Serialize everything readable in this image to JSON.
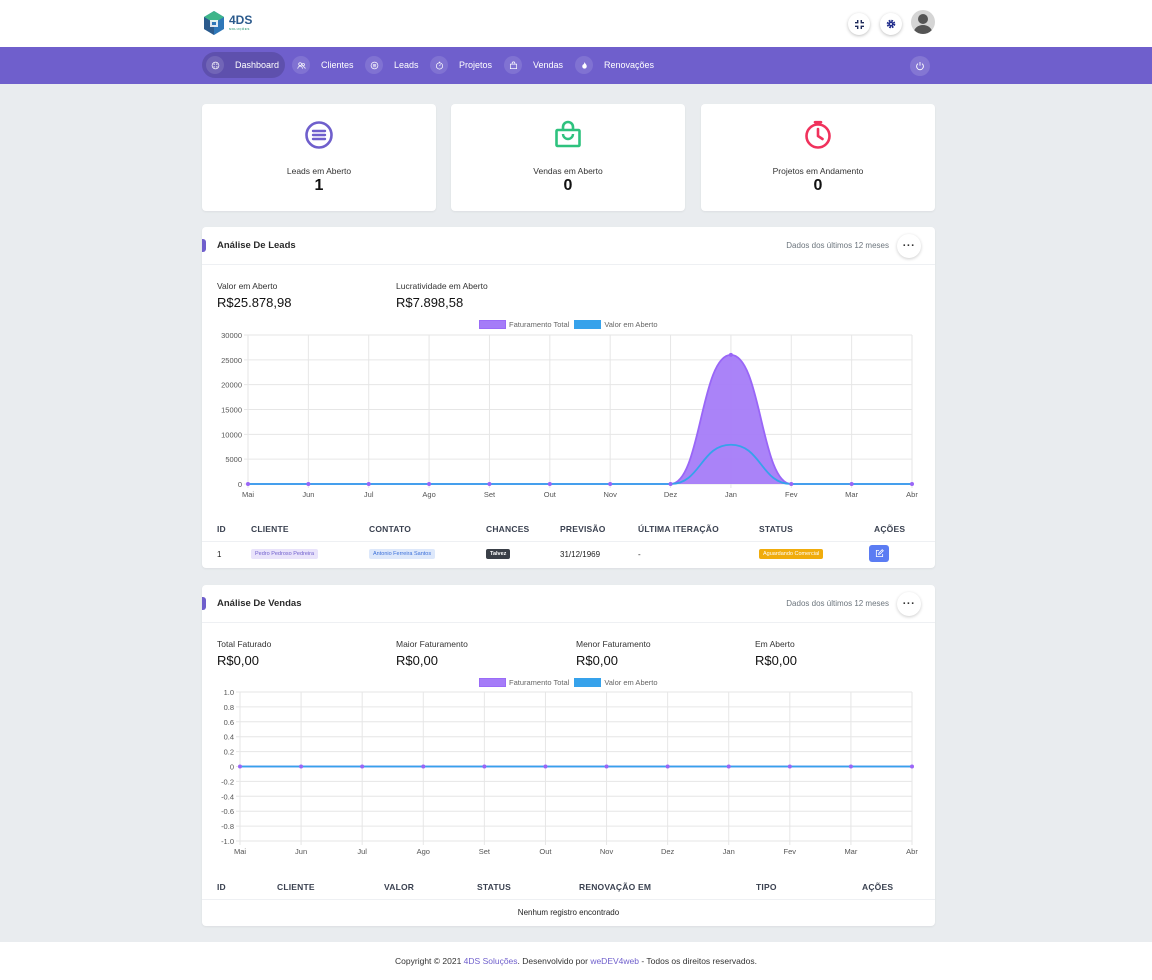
{
  "brand": {
    "name": "4DS",
    "tagline": "SOLUÇÕES"
  },
  "nav": {
    "items": [
      {
        "label": "Dashboard"
      },
      {
        "label": "Clientes"
      },
      {
        "label": "Leads"
      },
      {
        "label": "Projetos"
      },
      {
        "label": "Vendas"
      },
      {
        "label": "Renovações"
      }
    ]
  },
  "stats": [
    {
      "label": "Leads em Aberto",
      "value": "1",
      "icon": "list-circle-icon",
      "color": "#6f5fcc"
    },
    {
      "label": "Vendas em Aberto",
      "value": "0",
      "icon": "shopping-bag-icon",
      "color": "#2ec27e"
    },
    {
      "label": "Projetos em Andamento",
      "value": "0",
      "icon": "stopwatch-icon",
      "color": "#f0325c"
    }
  ],
  "leads": {
    "title": "Análise De Leads",
    "subtitle": "Dados dos últimos 12 meses",
    "kpis": [
      {
        "label": "Valor em Aberto",
        "value": "R$25.878,98"
      },
      {
        "label": "Lucratividade em Aberto",
        "value": "R$7.898,58"
      }
    ],
    "legend": {
      "series1": "Faturamento Total",
      "series2": "Valor em Aberto"
    },
    "table": {
      "headers": [
        "ID",
        "CLIENTE",
        "CONTATO",
        "CHANCES",
        "PREVISÃO",
        "ÚLTIMA ITERAÇÃO",
        "STATUS",
        "AÇÕES"
      ],
      "rows": [
        {
          "id": "1",
          "cliente": "Pedro Pedroso Pedreira",
          "contato": "Antonio Ferreira Santos",
          "chances": "Talvez",
          "previsao": "31/12/1969",
          "ultima": "-",
          "status": "Aguardando Comercial"
        }
      ]
    }
  },
  "vendas": {
    "title": "Análise De Vendas",
    "subtitle": "Dados dos últimos 12 meses",
    "kpis": [
      {
        "label": "Total Faturado",
        "value": "R$0,00"
      },
      {
        "label": "Maior Faturamento",
        "value": "R$0,00"
      },
      {
        "label": "Menor Faturamento",
        "value": "R$0,00"
      },
      {
        "label": "Em Aberto",
        "value": "R$0,00"
      }
    ],
    "legend": {
      "series1": "Faturamento Total",
      "series2": "Valor em Aberto"
    },
    "table": {
      "headers": [
        "ID",
        "CLIENTE",
        "VALOR",
        "STATUS",
        "RENOVAÇÃO EM",
        "TIPO",
        "AÇÕES"
      ],
      "empty": "Nenhum registro encontrado"
    }
  },
  "footer": {
    "prefix": "Copyright © 2021 ",
    "company": "4DS Soluções",
    "middle": ". Desenvolvido por ",
    "dev": "weDEV4web",
    "suffix": " - Todos os direitos reservados."
  },
  "chart_data": [
    {
      "type": "area",
      "categories": [
        "Mai",
        "Jun",
        "Jul",
        "Ago",
        "Set",
        "Out",
        "Nov",
        "Dez",
        "Jan",
        "Fev",
        "Mar",
        "Abr"
      ],
      "series": [
        {
          "name": "Faturamento Total",
          "values": [
            0,
            0,
            0,
            0,
            0,
            0,
            0,
            0,
            26000,
            0,
            0,
            0
          ],
          "color": "#9966f7"
        },
        {
          "name": "Valor em Aberto",
          "values": [
            0,
            0,
            0,
            0,
            0,
            0,
            0,
            0,
            7900,
            0,
            0,
            0
          ],
          "color": "#36a2eb"
        }
      ],
      "ylim": [
        0,
        30000
      ],
      "yticks": [
        "30000",
        "25000",
        "20000",
        "15000",
        "10000",
        "5000",
        "0"
      ],
      "grid": true,
      "legend": "top"
    },
    {
      "type": "line",
      "categories": [
        "Mai",
        "Jun",
        "Jul",
        "Ago",
        "Set",
        "Out",
        "Nov",
        "Dez",
        "Jan",
        "Fev",
        "Mar",
        "Abr"
      ],
      "series": [
        {
          "name": "Faturamento Total",
          "values": [
            0,
            0,
            0,
            0,
            0,
            0,
            0,
            0,
            0,
            0,
            0,
            0
          ],
          "color": "#9966f7"
        },
        {
          "name": "Valor em Aberto",
          "values": [
            0,
            0,
            0,
            0,
            0,
            0,
            0,
            0,
            0,
            0,
            0,
            0
          ],
          "color": "#36a2eb"
        }
      ],
      "ylim": [
        -1.0,
        1.0
      ],
      "yticks": [
        "1.0",
        "0.8",
        "0.6",
        "0.4",
        "0.2",
        "0",
        "-0.2",
        "-0.4",
        "-0.6",
        "-0.8",
        "-1.0"
      ],
      "grid": true,
      "legend": "top"
    }
  ]
}
